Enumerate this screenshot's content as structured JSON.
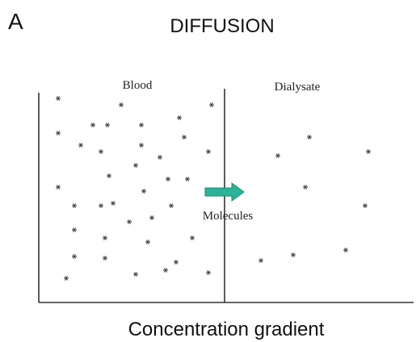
{
  "panel_label": "A",
  "title": "DIFFUSION",
  "left_compartment": "Blood",
  "right_compartment": "Dialysate",
  "arrow_label": "Molecules",
  "caption": "Concentration gradient"
}
